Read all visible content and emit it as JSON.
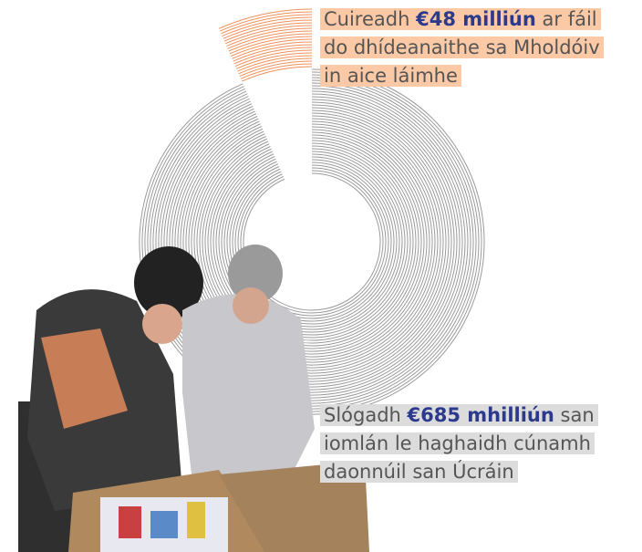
{
  "chart_data": {
    "type": "ring",
    "segments": [
      {
        "prefix": "Cuireadh",
        "value_label": "€48 milliún",
        "suffix": "ar fáil do dhídeanaithe sa Mholdóiv in aice láimhe",
        "value": 48,
        "color": "#f0905a",
        "highlight": "#fcc9a6"
      },
      {
        "prefix": "Slógadh",
        "value_label": "€685 mhilliún",
        "suffix": "san iomlán le haghaidh cúnamh daonnúil san Úcráin",
        "value": 685,
        "color": "#9a9a9a",
        "highlight": "#dcdcdc"
      }
    ]
  }
}
